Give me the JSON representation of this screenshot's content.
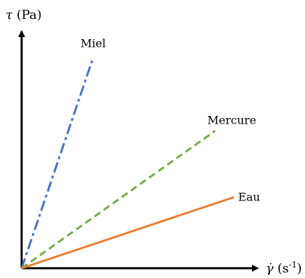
{
  "chart_data": {
    "type": "line",
    "title": "",
    "xlabel": "γ̇ (s⁻¹)",
    "ylabel": "τ (Pa)",
    "x_axis": {
      "symbol": "γ̇",
      "unit": "s",
      "exponent": "-1"
    },
    "y_axis": {
      "symbol": "τ",
      "unit": "Pa"
    },
    "xlim": [
      0,
      1
    ],
    "ylim": [
      0,
      1
    ],
    "grid": false,
    "series": [
      {
        "name": "Miel",
        "x": [
          0,
          0.3
        ],
        "y": [
          0,
          0.88
        ],
        "color": "#4472C4",
        "dash": "dash-dot"
      },
      {
        "name": "Mercure",
        "x": [
          0,
          0.82
        ],
        "y": [
          0,
          0.58
        ],
        "color": "#70AD47",
        "dash": "dashed"
      },
      {
        "name": "Eau",
        "x": [
          0,
          0.9
        ],
        "y": [
          0,
          0.3
        ],
        "color": "#ED7D31",
        "dash": "solid"
      }
    ]
  }
}
